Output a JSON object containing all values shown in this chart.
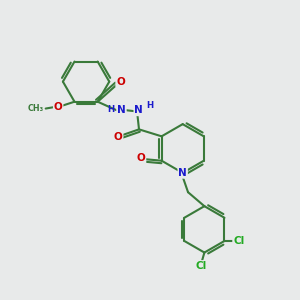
{
  "background_color": "#e8eaea",
  "bond_color": "#3a7a3a",
  "nitrogen_color": "#1a1acc",
  "oxygen_color": "#cc0000",
  "chlorine_color": "#22aa22",
  "carbon_color": "#3a7a3a",
  "line_width": 1.5,
  "figsize": [
    3.0,
    3.0
  ],
  "dpi": 100,
  "xlim": [
    0,
    10
  ],
  "ylim": [
    0,
    10
  ]
}
